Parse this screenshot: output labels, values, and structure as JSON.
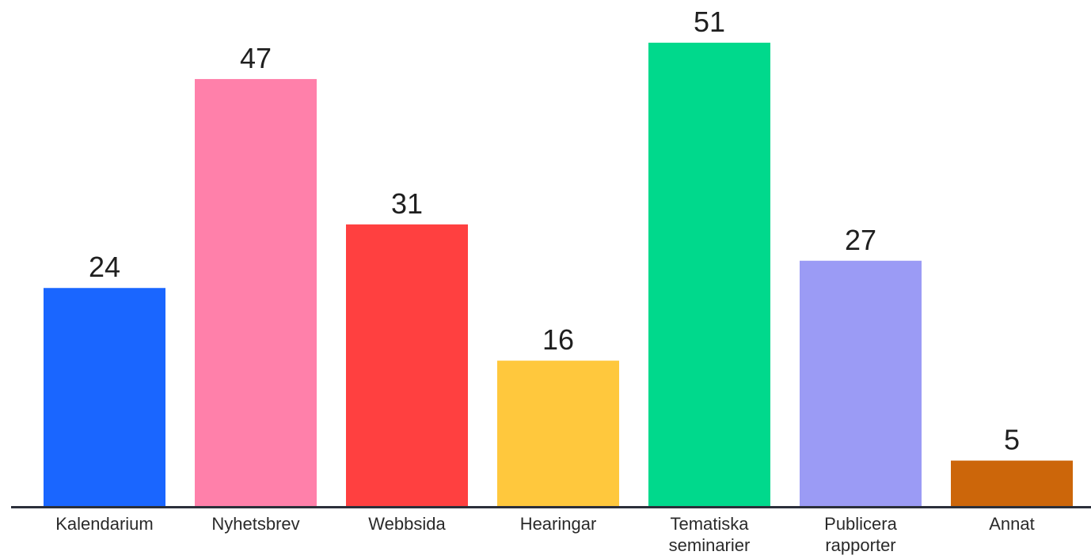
{
  "chart_data": {
    "type": "bar",
    "title": "",
    "xlabel": "",
    "ylabel": "",
    "categories": [
      "Kalendarium",
      "Nyhetsbrev",
      "Webbsida",
      "Hearingar",
      "Tematiska seminarier",
      "Publicera rapporter",
      "Annat"
    ],
    "category_lines": [
      [
        "Kalendarium"
      ],
      [
        "Nyhetsbrev"
      ],
      [
        "Webbsida"
      ],
      [
        "Hearingar"
      ],
      [
        "Tematiska",
        "seminarier"
      ],
      [
        "Publicera",
        "rapporter"
      ],
      [
        "Annat"
      ]
    ],
    "values": [
      24,
      47,
      31,
      16,
      51,
      27,
      5
    ],
    "colors": [
      "#1a66ff",
      "#ff80aa",
      "#ff4040",
      "#ffc83d",
      "#00d98c",
      "#9b9bf5",
      "#cc660a"
    ],
    "axis_color": "#2b2f3a",
    "ylim": [
      0,
      51
    ],
    "grid": false,
    "legend": "none"
  }
}
